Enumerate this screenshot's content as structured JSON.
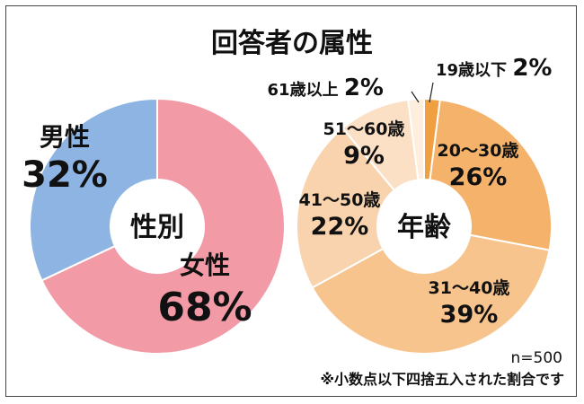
{
  "title": "回答者の属性",
  "note_n": "n=500",
  "note_rounding": "※小数点以下四捨五入された割合です",
  "chart_data": [
    {
      "type": "pie",
      "center_label": "性別",
      "labels": [
        "男性",
        "女性"
      ],
      "values": [
        32,
        68
      ],
      "value_text": [
        "32%",
        "68%"
      ],
      "colors": [
        "#8db4e2",
        "#f29aa6"
      ]
    },
    {
      "type": "pie",
      "center_label": "年齢",
      "labels": [
        "19歳以下",
        "20～30歳",
        "31～40歳",
        "41～50歳",
        "51～60歳",
        "61歳以上"
      ],
      "values": [
        2,
        26,
        39,
        22,
        9,
        2
      ],
      "value_text": [
        "2%",
        "26%",
        "39%",
        "22%",
        "9%",
        "2%"
      ],
      "colors": [
        "#f0a040",
        "#f4b26a",
        "#f7c48e",
        "#f9d3ad",
        "#fbe0c6",
        "#fdeede"
      ]
    }
  ]
}
